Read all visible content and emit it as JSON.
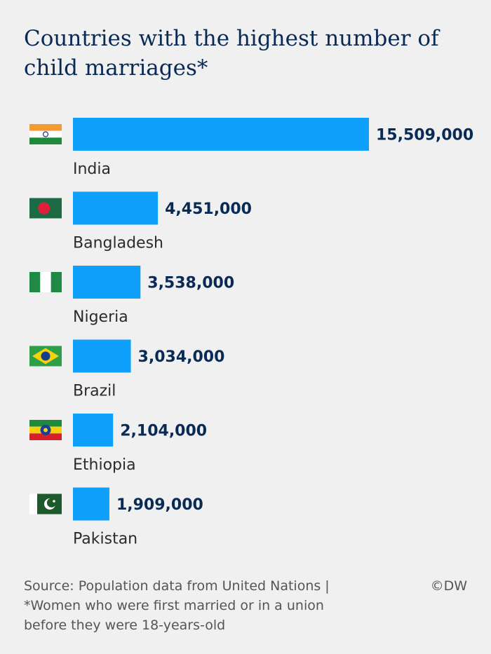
{
  "chart_data": {
    "type": "bar",
    "orientation": "horizontal",
    "title": "Countries with the highest number of child marriages*",
    "categories": [
      "India",
      "Bangladesh",
      "Nigeria",
      "Brazil",
      "Ethiopia",
      "Pakistan"
    ],
    "values": [
      15509000,
      4451000,
      3538000,
      3034000,
      2104000,
      1909000
    ],
    "value_labels": [
      "15,509,000",
      "4,451,000",
      "3,538,000",
      "3,034,000",
      "2,104,000",
      "1,909,000"
    ],
    "flags": [
      "india-flag-icon",
      "bangladesh-flag-icon",
      "nigeria-flag-icon",
      "brazil-flag-icon",
      "ethiopia-flag-icon",
      "pakistan-flag-icon"
    ],
    "bar_color": "#0ea0fb",
    "grid": false,
    "legend": "none"
  },
  "footer": {
    "line1": "Source: Population data from United Nations |",
    "line2": "*Women who were first married or in a union",
    "line3": "before they were 18-years-old",
    "credit": "©DW"
  }
}
